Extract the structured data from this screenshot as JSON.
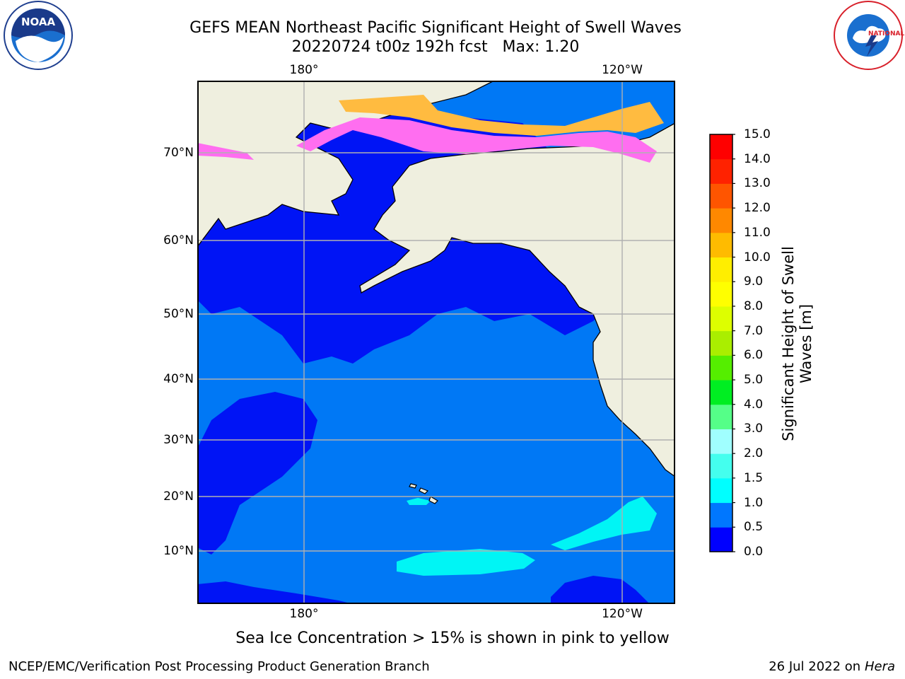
{
  "title": {
    "line1": "GEFS MEAN Northeast Pacific Significant Height of Swell Waves",
    "line2": "20220724 t00z 192h fcst   Max: 1.20"
  },
  "map": {
    "lon_labels": [
      "180°",
      "120°W"
    ],
    "lat_labels": [
      "70°N",
      "60°N",
      "50°N",
      "40°N",
      "30°N",
      "20°N",
      "10°N"
    ],
    "grid": true,
    "colors": {
      "land": "#efefdf",
      "ocean_low": "#0014f5",
      "ocean_mid": "#0078f5",
      "ocean_high": "#00f5f5",
      "ice_pink": "#ff6ef0",
      "ice_orange": "#ffbb40",
      "gridline": "#b0b0b0"
    }
  },
  "colorbar": {
    "label_line1": "Significant Height of Swell",
    "label_line2": "Waves [m]",
    "ticks": [
      "0.0",
      "0.5",
      "1.0",
      "1.5",
      "2.0",
      "3.0",
      "4.0",
      "5.0",
      "6.0",
      "7.0",
      "8.0",
      "9.0",
      "10.0",
      "11.0",
      "12.0",
      "13.0",
      "14.0",
      "15.0"
    ],
    "colors": [
      "#0000ff",
      "#0077ff",
      "#00ffff",
      "#44ffee",
      "#a0ffff",
      "#55ff88",
      "#00ee22",
      "#55ee00",
      "#aaee00",
      "#ddff00",
      "#ffff00",
      "#ffee00",
      "#ffbb00",
      "#ff8800",
      "#ff5500",
      "#ff2200",
      "#ff0000"
    ]
  },
  "footnote": "Sea Ice Concentration > 15% is shown in pink to yellow",
  "credit": "NCEP/EMC/Verification Post Processing Product Generation Branch",
  "date": {
    "text": "26 Jul 2022 on ",
    "machine": "Hera"
  },
  "logos": {
    "left": "NOAA",
    "right": "NATIONAL WEATHER SERVICE"
  }
}
